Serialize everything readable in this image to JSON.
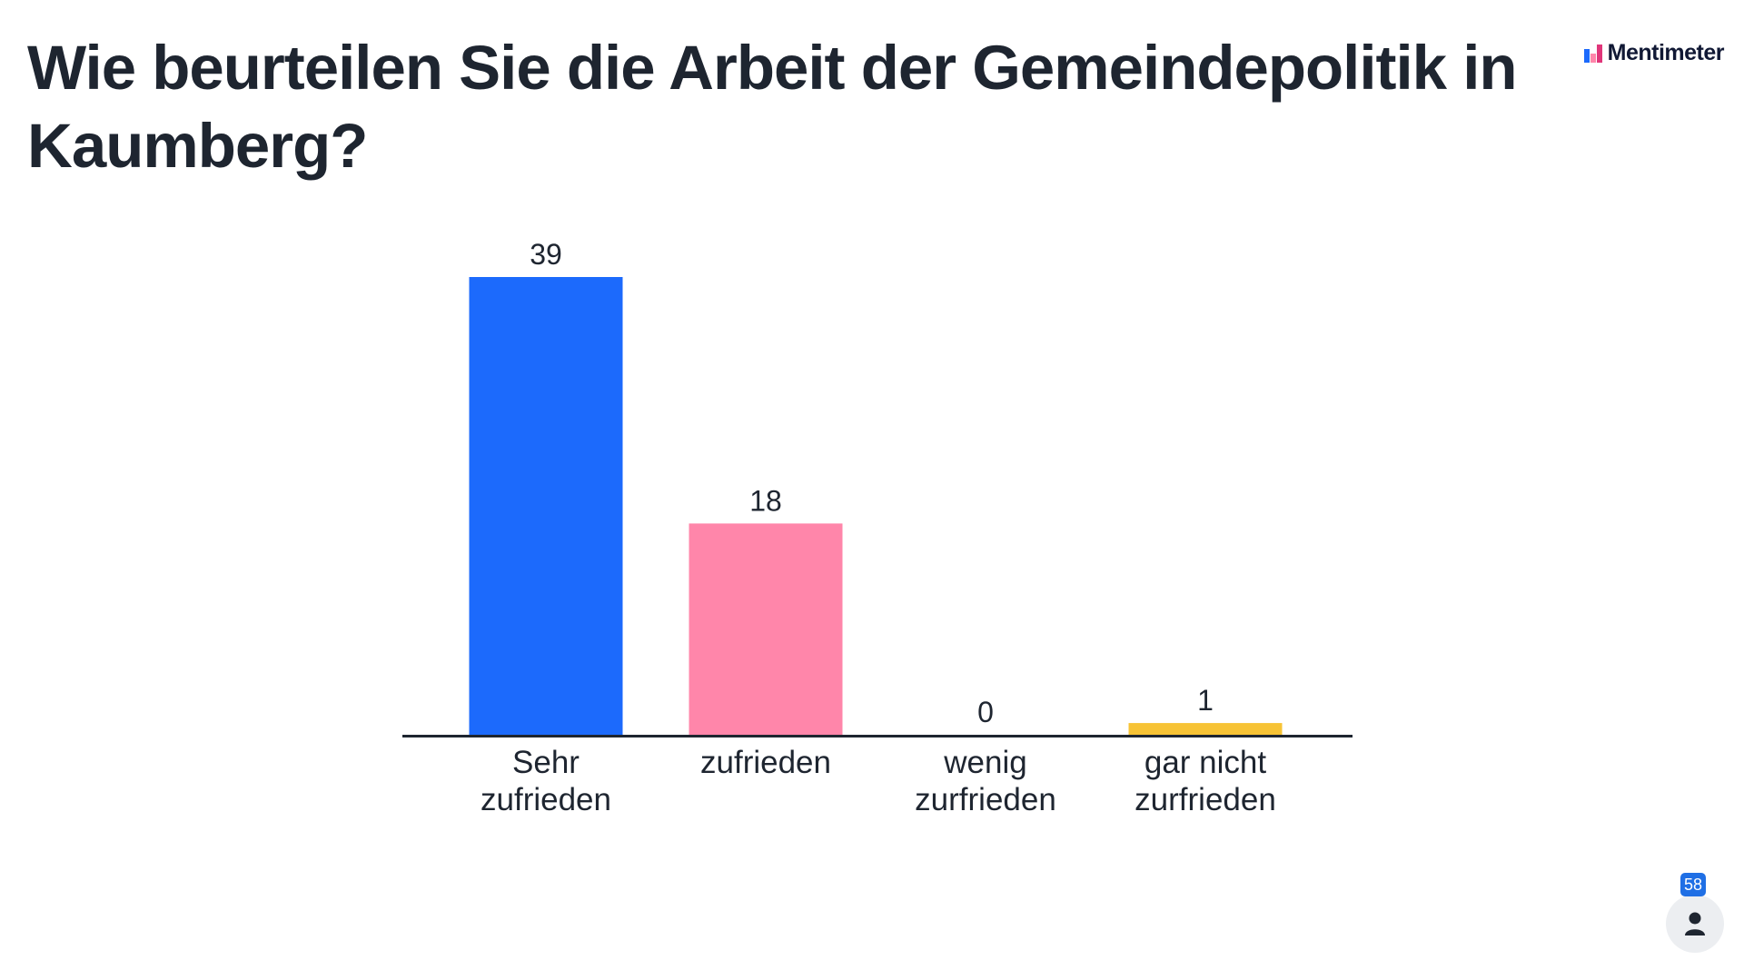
{
  "slide": {
    "question": "Wie beurteilen Sie die Arbeit der Gemeindepolitik in Kaumberg?",
    "brand_name": "Mentimeter",
    "participant_count": "58",
    "participant_icon": "person-icon",
    "brand_icon": "mentimeter-logo-icon"
  },
  "chart_data": {
    "type": "bar",
    "categories": [
      "Sehr zufrieden",
      "zufrieden",
      "wenig zurfrieden",
      "gar nicht zurfrieden"
    ],
    "category_lines": [
      [
        "Sehr",
        "zufrieden"
      ],
      [
        "zufrieden"
      ],
      [
        "wenig",
        "zurfrieden"
      ],
      [
        "gar nicht",
        "zurfrieden"
      ]
    ],
    "values": [
      39,
      18,
      0,
      1
    ],
    "colors": [
      "#1c6afc",
      "#ff86aa",
      "#2fc9a0",
      "#f7c335"
    ],
    "data_labels": true,
    "grid": false,
    "legend": "none"
  }
}
